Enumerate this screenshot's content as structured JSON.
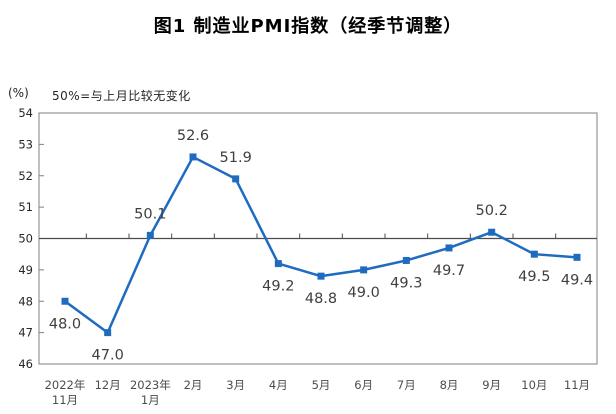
{
  "title": "图1 制造业PMI指数（经季节调整）",
  "unit_label": "(%)",
  "note": "50%=与上月比较无变化",
  "colors": {
    "line": "#1e6bc0",
    "marker": "#1e6bc0",
    "data_label": "#404040",
    "y_axis_text": "#262626",
    "x_axis_text": "#4d4d4d",
    "plot_border": "#808080",
    "reference_line": "#4d4d4d",
    "title_text": "#000000"
  },
  "chart_data": {
    "type": "line",
    "title": "图1 制造业PMI指数（经季节调整）",
    "ylabel": "(%)",
    "annotation": "50%=与上月比较无变化",
    "categories": [
      "2022年\n11月",
      "12月",
      "2023年\n1月",
      "2月",
      "3月",
      "4月",
      "5月",
      "6月",
      "7月",
      "8月",
      "9月",
      "10月",
      "11月"
    ],
    "values": [
      48.0,
      47.0,
      50.1,
      52.6,
      51.9,
      49.2,
      48.8,
      49.0,
      49.3,
      49.7,
      50.2,
      49.5,
      49.4
    ],
    "data_labels": [
      "48.0",
      "47.0",
      "50.1",
      "52.6",
      "51.9",
      "49.2",
      "48.8",
      "49.0",
      "49.3",
      "49.7",
      "50.2",
      "49.5",
      "49.4"
    ],
    "label_positions": [
      "below",
      "below",
      "above",
      "above",
      "above",
      "below",
      "below",
      "below",
      "below",
      "below",
      "above",
      "below",
      "below"
    ],
    "ylim": [
      46,
      54
    ],
    "yticks": [
      54,
      53,
      52,
      51,
      50,
      49,
      48,
      47,
      46
    ],
    "reference_line": 50,
    "grid": false,
    "legend": "none",
    "marker": "square"
  }
}
